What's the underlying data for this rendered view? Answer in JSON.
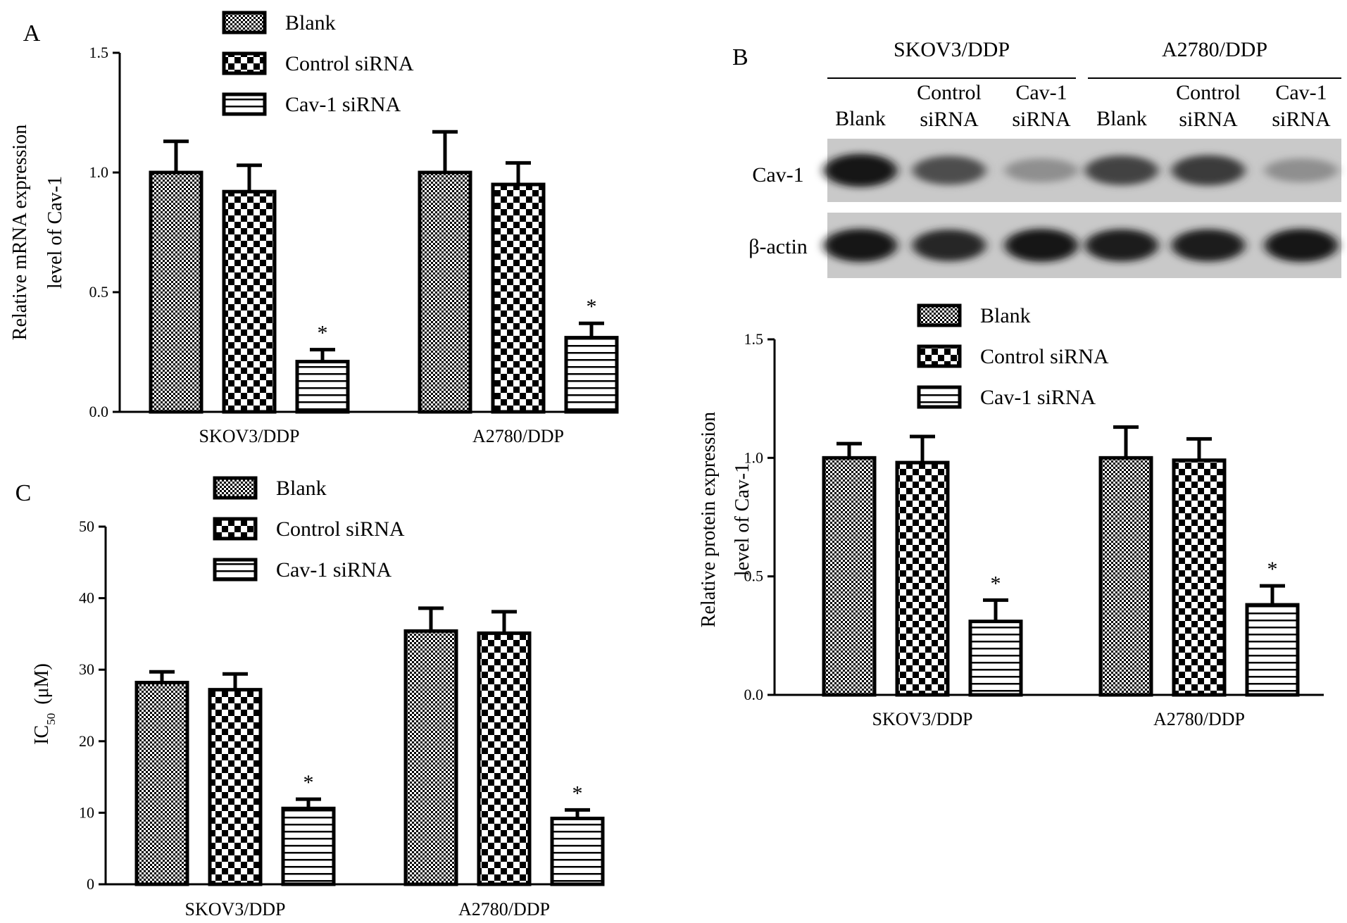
{
  "blot": {
    "panel_label": "B",
    "groups": [
      "SKOV3/DDP",
      "A2780/DDP"
    ],
    "lanes": [
      [
        "Blank"
      ],
      [
        "Control",
        "siRNA"
      ],
      [
        "Cav-1",
        "siRNA"
      ],
      [
        "Blank"
      ],
      [
        "Control",
        "siRNA"
      ],
      [
        "Cav-1",
        "siRNA"
      ]
    ],
    "rows": [
      {
        "label": "Cav-1",
        "intensity": [
          0.95,
          0.65,
          0.3,
          0.7,
          0.75,
          0.3
        ]
      },
      {
        "label": "β-actin",
        "intensity": [
          0.95,
          0.85,
          0.95,
          0.9,
          0.9,
          0.95
        ]
      }
    ]
  },
  "chart_data": [
    {
      "type": "bar",
      "panel_label": "A",
      "ylabel": [
        "Relative mRNA expression",
        "level of Cav-1"
      ],
      "categories": [
        "SKOV3/DDP",
        "A2780/DDP"
      ],
      "ylim": [
        0,
        1.5
      ],
      "yticks": [
        "0.0",
        "0.5",
        "1.0",
        "1.5"
      ],
      "series": [
        {
          "name": "Blank",
          "pattern": "fine",
          "values": [
            1.0,
            1.0
          ],
          "errors": [
            0.13,
            0.17
          ]
        },
        {
          "name": "Control siRNA",
          "pattern": "checker",
          "values": [
            0.92,
            0.95
          ],
          "errors": [
            0.11,
            0.09
          ]
        },
        {
          "name": "Cav-1 siRNA",
          "pattern": "stripes",
          "values": [
            0.21,
            0.31
          ],
          "errors": [
            0.05,
            0.06
          ]
        }
      ],
      "annotations": [
        {
          "text": "*",
          "series": 2,
          "category": 0
        },
        {
          "text": "*",
          "series": 2,
          "category": 1
        }
      ]
    },
    {
      "type": "bar",
      "panel_label": "",
      "ylabel": [
        "Relative protein expression",
        "level of Cav-1"
      ],
      "categories": [
        "SKOV3/DDP",
        "A2780/DDP"
      ],
      "ylim": [
        0,
        1.5
      ],
      "yticks": [
        "0.0",
        "0.5",
        "1.0",
        "1.5"
      ],
      "series": [
        {
          "name": "Blank",
          "pattern": "fine",
          "values": [
            1.0,
            1.0
          ],
          "errors": [
            0.06,
            0.13
          ]
        },
        {
          "name": "Control siRNA",
          "pattern": "checker",
          "values": [
            0.98,
            0.99
          ],
          "errors": [
            0.11,
            0.09
          ]
        },
        {
          "name": "Cav-1 siRNA",
          "pattern": "stripes",
          "values": [
            0.31,
            0.38
          ],
          "errors": [
            0.09,
            0.08
          ]
        }
      ],
      "annotations": [
        {
          "text": "*",
          "series": 2,
          "category": 0
        },
        {
          "text": "*",
          "series": 2,
          "category": 1
        }
      ]
    },
    {
      "type": "bar",
      "panel_label": "C",
      "ylabel": [
        "IC50 (μM)"
      ],
      "categories": [
        "SKOV3/DDP",
        "A2780/DDP"
      ],
      "ylim": [
        0,
        50
      ],
      "yticks": [
        "0",
        "10",
        "20",
        "30",
        "40",
        "50"
      ],
      "series": [
        {
          "name": "Blank",
          "pattern": "fine",
          "values": [
            28.2,
            35.4
          ],
          "errors": [
            1.5,
            3.2
          ]
        },
        {
          "name": "Control siRNA",
          "pattern": "checker",
          "values": [
            27.2,
            35.1
          ],
          "errors": [
            2.2,
            3.0
          ]
        },
        {
          "name": "Cav-1 siRNA",
          "pattern": "stripes",
          "values": [
            10.6,
            9.2
          ],
          "errors": [
            1.3,
            1.2
          ]
        }
      ],
      "annotations": [
        {
          "text": "*",
          "series": 2,
          "category": 0
        },
        {
          "text": "*",
          "series": 2,
          "category": 1
        }
      ]
    }
  ]
}
